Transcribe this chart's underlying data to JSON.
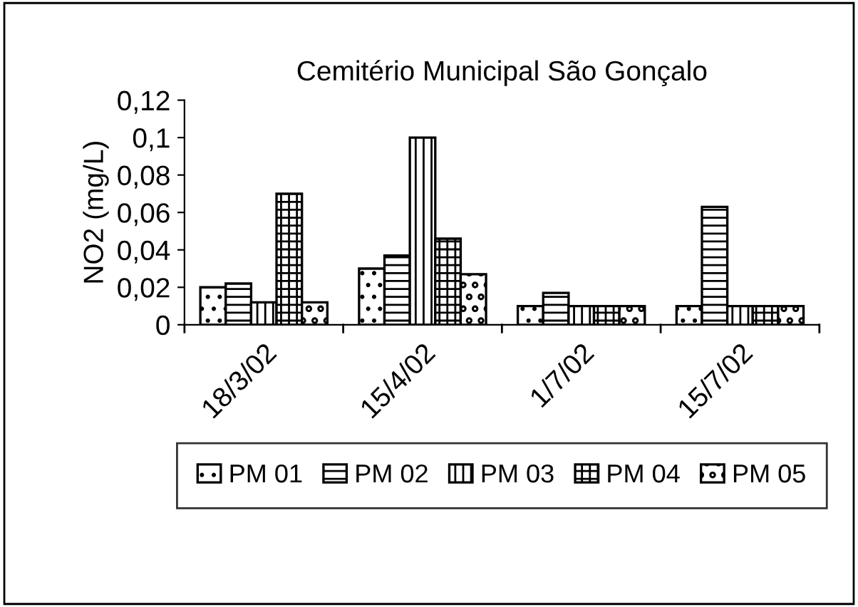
{
  "chart_data": {
    "type": "bar",
    "title": "Cemitério Municipal São Gonçalo",
    "ylabel": "NO2 (mg/L)",
    "categories": [
      "18/3/02",
      "15/4/02",
      "1/7/02",
      "15/7/02"
    ],
    "series": [
      {
        "name": "PM 01",
        "color": "#000000",
        "values": [
          0.02,
          0.03,
          0.01,
          0.01
        ]
      },
      {
        "name": "PM 02",
        "color": "#000000",
        "values": [
          0.022,
          0.037,
          0.017,
          0.063
        ]
      },
      {
        "name": "PM 03",
        "color": "#000000",
        "values": [
          0.012,
          0.1,
          0.01,
          0.01
        ]
      },
      {
        "name": "PM 04",
        "color": "#000000",
        "values": [
          0.07,
          0.046,
          0.01,
          0.01
        ]
      },
      {
        "name": "PM 05",
        "color": "#000000",
        "values": [
          0.012,
          0.027,
          0.01,
          0.01
        ]
      }
    ],
    "ylim": [
      0,
      0.12
    ],
    "yticks": [
      {
        "value": 0,
        "label": "0"
      },
      {
        "value": 0.02,
        "label": "0,02"
      },
      {
        "value": 0.04,
        "label": "0,04"
      },
      {
        "value": 0.06,
        "label": "0,06"
      },
      {
        "value": 0.08,
        "label": "0,08"
      },
      {
        "value": 0.1,
        "label": "0,1"
      },
      {
        "value": 0.12,
        "label": "0,12"
      }
    ],
    "grid": false,
    "legend": "bottom"
  }
}
